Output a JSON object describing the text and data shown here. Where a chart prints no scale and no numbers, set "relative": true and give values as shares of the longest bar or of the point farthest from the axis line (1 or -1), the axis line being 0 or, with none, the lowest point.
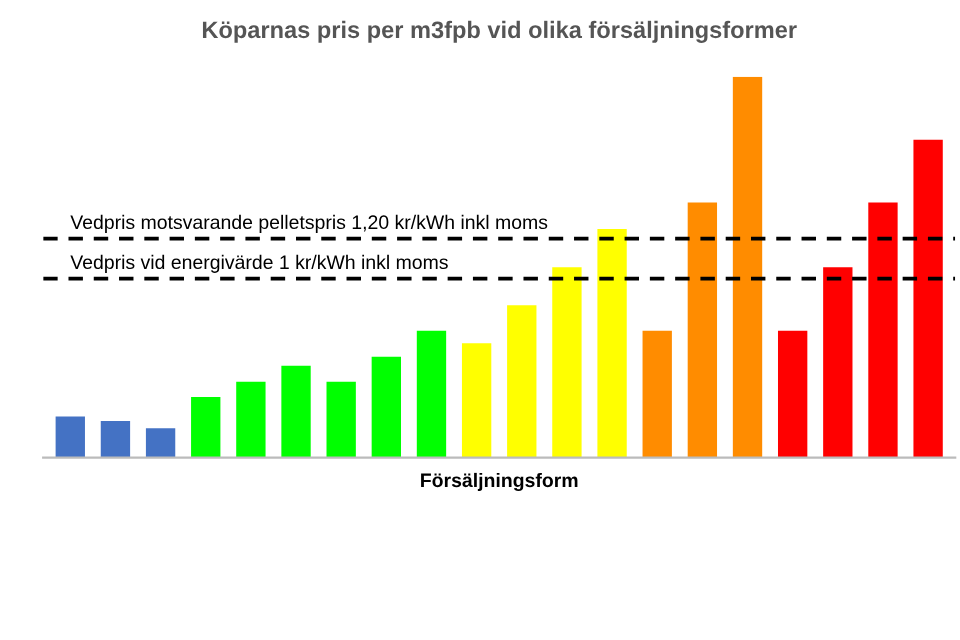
{
  "chart_data": {
    "type": "bar",
    "title": "Köparnas pris per m3fpb vid olika försäljningsformer",
    "xlabel": "Försäljningsform",
    "relative": true,
    "categories": [
      null,
      null,
      null,
      null,
      null,
      null,
      null,
      null,
      null,
      null,
      null,
      null,
      null,
      null,
      null,
      null,
      null,
      null,
      null,
      null
    ],
    "values": [
      0.108,
      0.096,
      0.077,
      0.159,
      0.199,
      0.241,
      0.199,
      0.265,
      0.333,
      0.3,
      0.4,
      0.5,
      0.6,
      0.333,
      0.67,
      1,
      0.333,
      0.5,
      0.67,
      0.835
    ],
    "colors": [
      "#4472c4",
      "#4472c4",
      "#4472c4",
      "#00ff00",
      "#00ff00",
      "#00ff00",
      "#00ff00",
      "#00ff00",
      "#00ff00",
      "#ffff00",
      "#ffff00",
      "#ffff00",
      "#ffff00",
      "#ff8c00",
      "#ff8c00",
      "#ff8c00",
      "#ff0000",
      "#ff0000",
      "#ff0000",
      "#ff0000"
    ],
    "ref_lines": [
      {
        "axis": "y",
        "value": 0.575,
        "label": "Vedpris motsvarande pelletspris 1,20 kr/kWh inkl moms",
        "color": "#000000",
        "line_style": "dashed"
      },
      {
        "axis": "y",
        "value": 0.47,
        "label": "Vedpris vid energivärde 1 kr/kWh inkl moms",
        "color": "#000000",
        "line_style": "dashed"
      }
    ]
  }
}
